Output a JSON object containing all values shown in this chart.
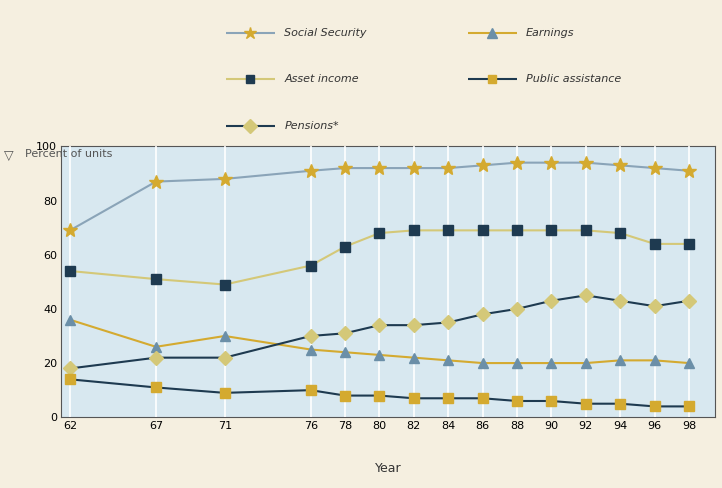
{
  "years": [
    62,
    67,
    71,
    76,
    78,
    80,
    82,
    84,
    86,
    88,
    90,
    92,
    94,
    96,
    98
  ],
  "social_security": [
    69,
    87,
    88,
    91,
    92,
    92,
    92,
    92,
    93,
    94,
    94,
    94,
    93,
    92,
    91
  ],
  "asset_income": [
    54,
    51,
    49,
    56,
    63,
    68,
    69,
    69,
    69,
    69,
    69,
    69,
    68,
    64,
    64
  ],
  "earnings": [
    36,
    26,
    30,
    25,
    24,
    23,
    22,
    21,
    20,
    20,
    20,
    20,
    21,
    21,
    20
  ],
  "pensions": [
    18,
    22,
    22,
    30,
    31,
    34,
    34,
    35,
    38,
    40,
    43,
    45,
    43,
    41,
    43
  ],
  "public_assistance": [
    14,
    11,
    9,
    10,
    8,
    8,
    7,
    7,
    7,
    6,
    6,
    5,
    5,
    4,
    4
  ],
  "ss_line_color": "#8aa4b8",
  "ss_marker_color": "#d4aa30",
  "asset_line_color": "#d4c878",
  "asset_marker_color": "#1e3a50",
  "earnings_line_color": "#d4aa30",
  "earnings_marker_color": "#6b8fa8",
  "pensions_line_color": "#1e3a50",
  "pensions_marker_color": "#d4c878",
  "pub_line_color": "#1e3a50",
  "pub_marker_color": "#d4aa30",
  "bg_chart_color": "#d8e8f0",
  "bg_outer_color": "#f5efe0",
  "grid_color": "#ffffff",
  "legend_border_color": "#7090a8",
  "xlabel": "Year",
  "yticks": [
    0,
    20,
    40,
    60,
    80,
    100
  ],
  "xlim_left": 61.5,
  "xlim_right": 99.5
}
